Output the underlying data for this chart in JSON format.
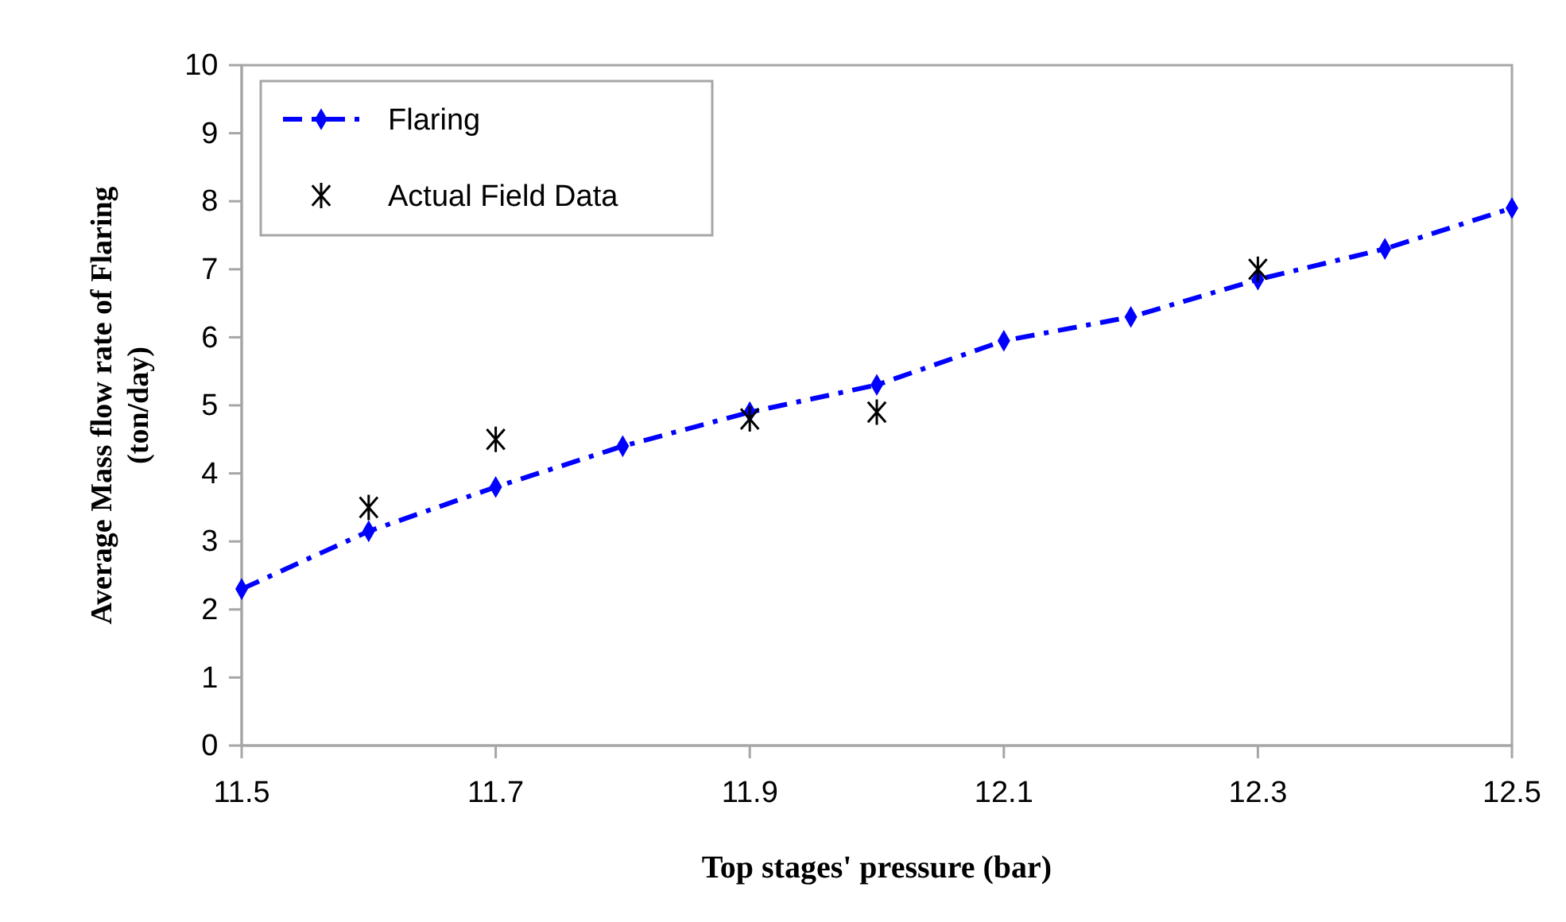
{
  "chart_data": {
    "type": "line",
    "xlabel": "Top stages' pressure (bar)",
    "ylabel": "Average Mass flow rate of Flaring\n(ton/day)",
    "xlim": [
      11.5,
      12.5
    ],
    "xticks": [
      11.5,
      11.7,
      11.9,
      12.1,
      12.3,
      12.5
    ],
    "ylim": [
      0,
      10
    ],
    "yticks": [
      0,
      1,
      2,
      3,
      4,
      5,
      6,
      7,
      8,
      9,
      10
    ],
    "grid": false,
    "legend": "top left",
    "series": [
      {
        "name": "Flaring",
        "color": "#0000ff",
        "marker": "diamond",
        "line_style": "dashed",
        "x": [
          11.5,
          11.6,
          11.7,
          11.8,
          11.9,
          12.0,
          12.1,
          12.2,
          12.3,
          12.4,
          12.5
        ],
        "values": [
          2.3,
          3.15,
          3.8,
          4.4,
          4.9,
          5.3,
          5.95,
          6.3,
          6.85,
          7.3,
          7.9
        ]
      },
      {
        "name": "Actual Field Data",
        "type": "scatter",
        "color": "#000000",
        "marker": "cross",
        "x": [
          11.6,
          11.7,
          11.9,
          12.0,
          12.3
        ],
        "values": [
          3.5,
          4.5,
          4.8,
          4.9,
          7.0
        ]
      }
    ]
  }
}
